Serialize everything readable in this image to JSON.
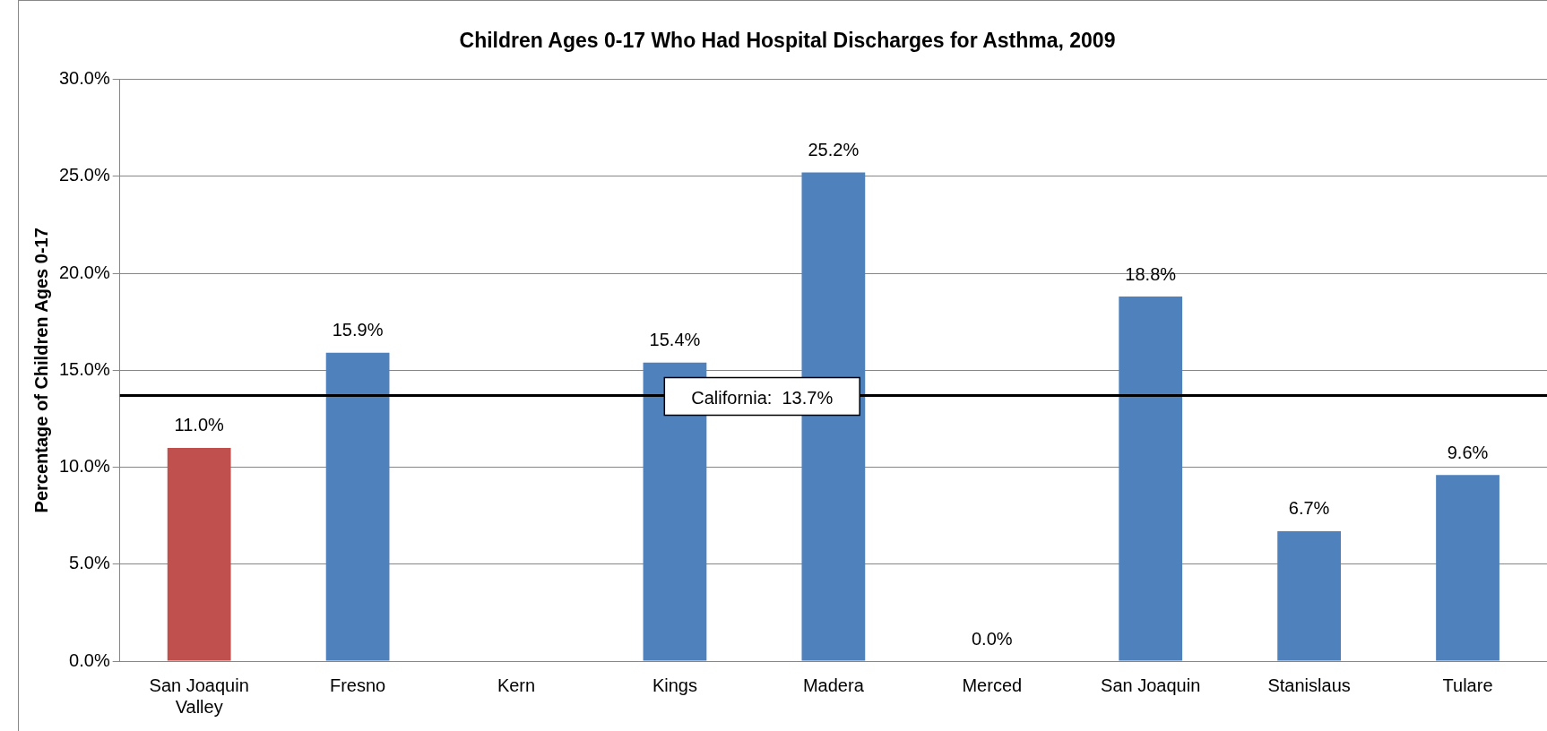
{
  "chart_data": {
    "type": "bar",
    "title": "Children Ages 0-17 Who Had Hospital Discharges for Asthma, 2009",
    "ylabel": "Percentage of Children Ages 0-17",
    "categories": [
      "San Joaquin Valley",
      "Fresno",
      "Kern",
      "Kings",
      "Madera",
      "Merced",
      "San Joaquin",
      "Stanislaus",
      "Tulare"
    ],
    "values": [
      11.0,
      15.9,
      null,
      15.4,
      25.2,
      0.0,
      18.8,
      6.7,
      9.6
    ],
    "value_labels": [
      "11.0%",
      "15.9%",
      null,
      "15.4%",
      "25.2%",
      "0.0%",
      "18.8%",
      "6.7%",
      "9.6%"
    ],
    "colors": [
      "#c0504d",
      "#4f81bd",
      "#4f81bd",
      "#4f81bd",
      "#4f81bd",
      "#4f81bd",
      "#4f81bd",
      "#4f81bd",
      "#4f81bd"
    ],
    "ylim": [
      0,
      30
    ],
    "yticks": [
      {
        "value": 0,
        "label": "0.0%"
      },
      {
        "value": 5,
        "label": "5.0%"
      },
      {
        "value": 10,
        "label": "10.0%"
      },
      {
        "value": 15,
        "label": "15.0%"
      },
      {
        "value": 20,
        "label": "20.0%"
      },
      {
        "value": 25,
        "label": "25.0%"
      },
      {
        "value": 30,
        "label": "30.0%"
      }
    ],
    "grid": "y",
    "legend": false,
    "ref_lines": [
      {
        "axis": "y",
        "value": 13.7,
        "label": "California:  13.7%",
        "color": "#000000"
      }
    ]
  }
}
